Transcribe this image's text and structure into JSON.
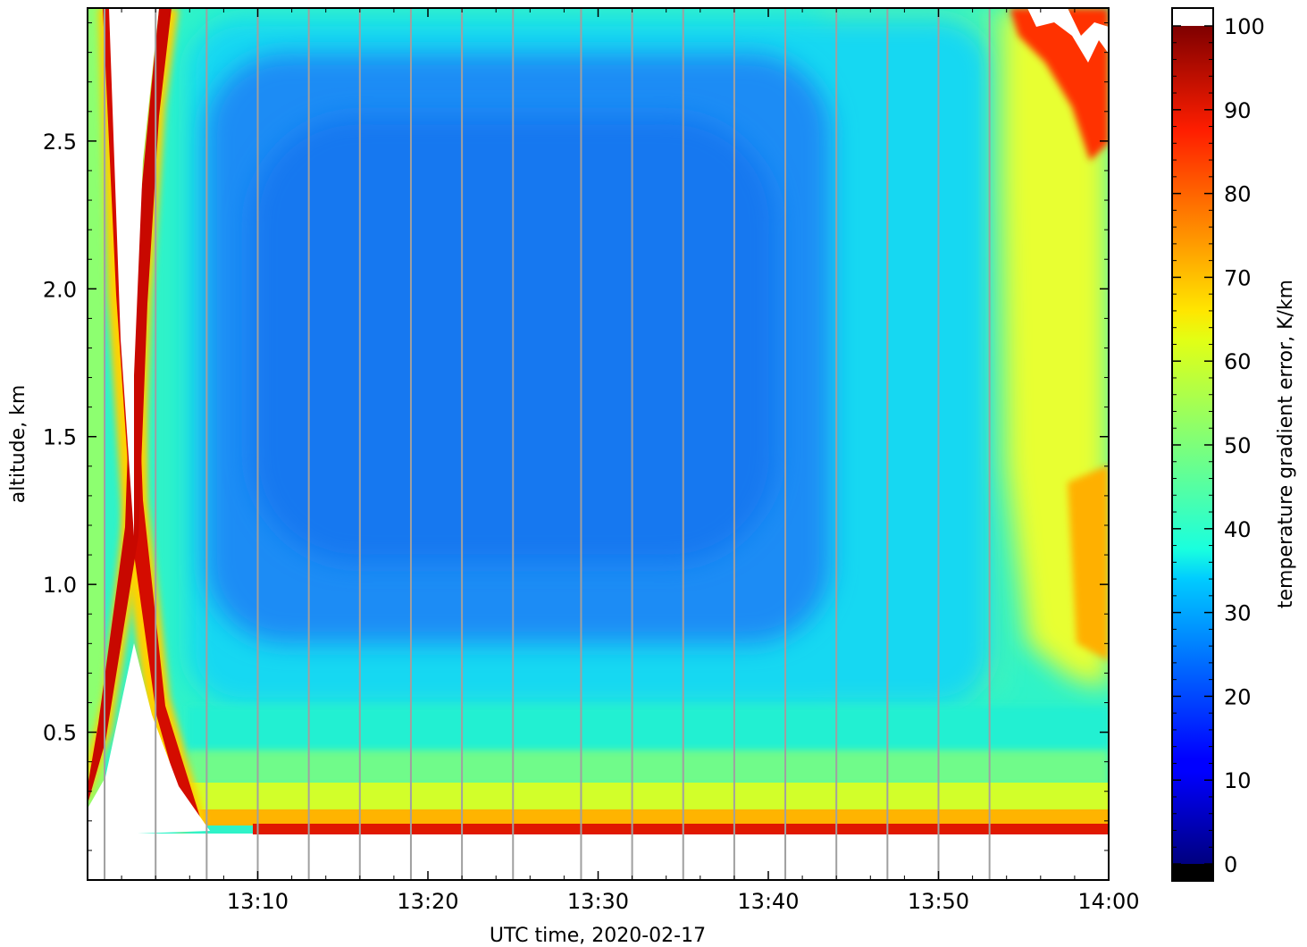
{
  "chart_data": {
    "type": "heatmap",
    "title": "",
    "xlabel": "UTC time,  2020-02-17",
    "ylabel": "altitude, km",
    "xlim": [
      "13:00",
      "14:00"
    ],
    "ylim": [
      0,
      2.95
    ],
    "x_ticks": [
      "13:10",
      "13:20",
      "13:30",
      "13:40",
      "13:50",
      "14:00"
    ],
    "y_ticks": [
      "0.5",
      "1.0",
      "1.5",
      "2.0",
      "2.5"
    ],
    "colorbar": {
      "label": "temperature gradient error, K/km",
      "range": [
        0,
        100
      ],
      "ticks": [
        "0",
        "10",
        "20",
        "30",
        "40",
        "50",
        "60",
        "70",
        "80",
        "90",
        "100"
      ],
      "colormap": "jet",
      "under_color": "#000000",
      "over_color": "#ffffff"
    },
    "profile_times": [
      "13:01",
      "13:04",
      "13:07",
      "13:10",
      "13:13",
      "13:16",
      "13:19",
      "13:22",
      "13:25",
      "13:29",
      "13:32",
      "13:35",
      "13:38",
      "13:41",
      "13:44",
      "13:47",
      "13:50",
      "13:53"
    ],
    "field_summary": {
      "lowest_valid_altitude_km": 0.17,
      "central_min_value": 18,
      "mid_region_value": 33,
      "low_layer_value": 45,
      "near_ground_value": 62,
      "edge_value": 95
    },
    "grid": false,
    "colors": {
      "profile_lines": "#a0a0a0",
      "frame": "#000000"
    }
  }
}
